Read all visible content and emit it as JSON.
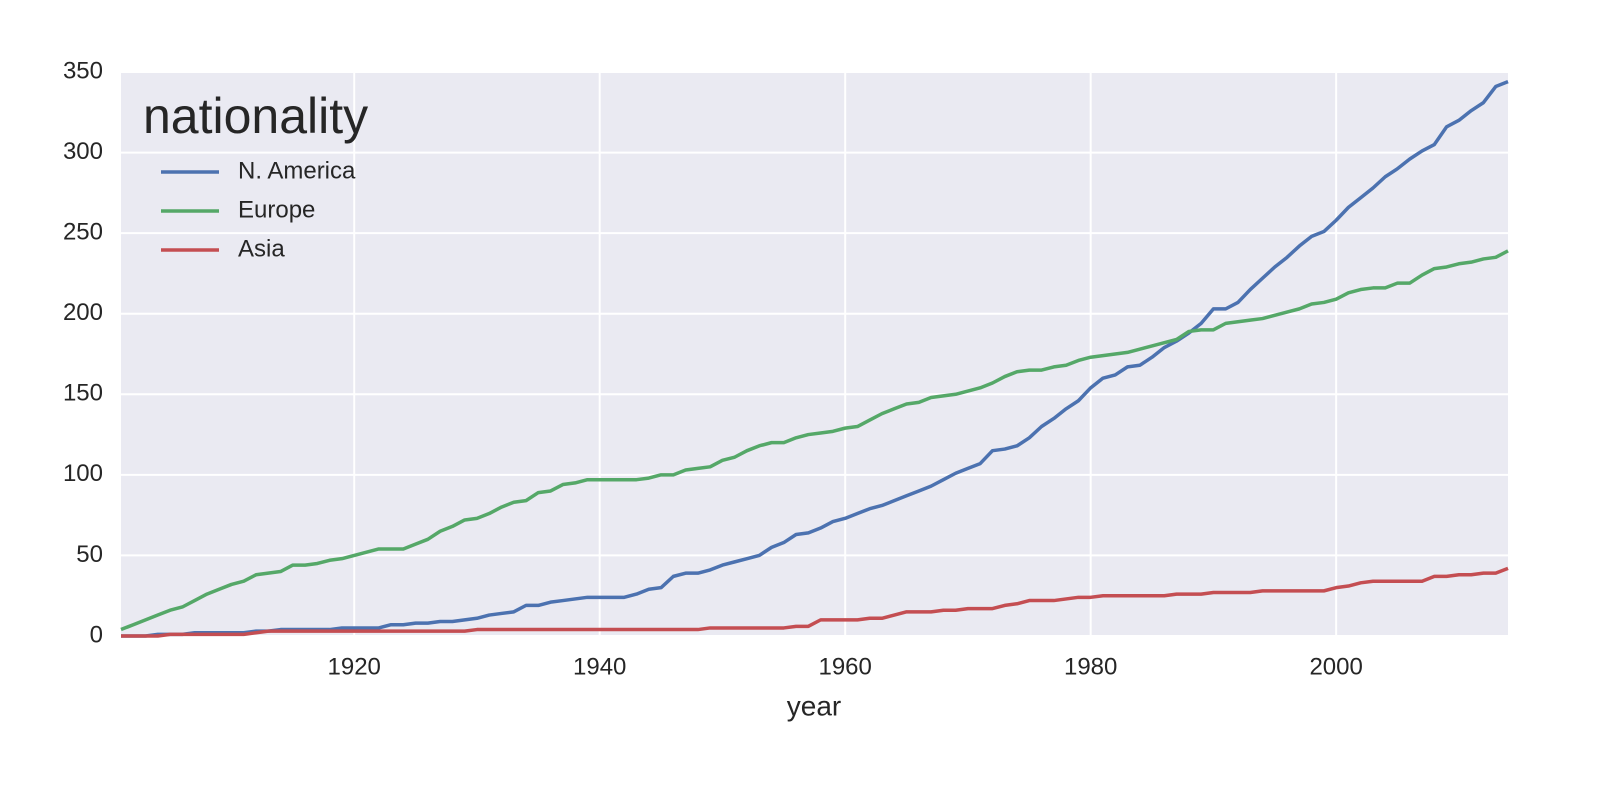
{
  "chart_data": {
    "type": "line",
    "x_label": "year",
    "legend_title": "nationality",
    "legend_position": "upper left",
    "grid": true,
    "xlim": [
      1901,
      2014
    ],
    "ylim": [
      0,
      350
    ],
    "xticks": [
      1920,
      1940,
      1960,
      1980,
      2000
    ],
    "yticks": [
      0,
      50,
      100,
      150,
      200,
      250,
      300,
      350
    ],
    "x": [
      1901,
      1902,
      1903,
      1904,
      1905,
      1906,
      1907,
      1908,
      1909,
      1910,
      1911,
      1912,
      1913,
      1914,
      1915,
      1916,
      1917,
      1918,
      1919,
      1920,
      1921,
      1922,
      1923,
      1924,
      1925,
      1926,
      1927,
      1928,
      1929,
      1930,
      1931,
      1932,
      1933,
      1934,
      1935,
      1936,
      1937,
      1938,
      1939,
      1940,
      1941,
      1942,
      1943,
      1944,
      1945,
      1946,
      1947,
      1948,
      1949,
      1950,
      1951,
      1952,
      1953,
      1954,
      1955,
      1956,
      1957,
      1958,
      1959,
      1960,
      1961,
      1962,
      1963,
      1964,
      1965,
      1966,
      1967,
      1968,
      1969,
      1970,
      1971,
      1972,
      1973,
      1974,
      1975,
      1976,
      1977,
      1978,
      1979,
      1980,
      1981,
      1982,
      1983,
      1984,
      1985,
      1986,
      1987,
      1988,
      1989,
      1990,
      1991,
      1992,
      1993,
      1994,
      1995,
      1996,
      1997,
      1998,
      1999,
      2000,
      2001,
      2002,
      2003,
      2004,
      2005,
      2006,
      2007,
      2008,
      2009,
      2010,
      2011,
      2012,
      2013,
      2014
    ],
    "series": [
      {
        "name": "N. America",
        "color": "#4c72b0",
        "values": [
          0,
          0,
          0,
          1,
          1,
          1,
          2,
          2,
          2,
          2,
          2,
          3,
          3,
          4,
          4,
          4,
          4,
          4,
          5,
          5,
          5,
          5,
          7,
          7,
          8,
          8,
          9,
          9,
          10,
          11,
          13,
          14,
          15,
          19,
          19,
          21,
          22,
          23,
          24,
          24,
          24,
          24,
          26,
          29,
          30,
          37,
          39,
          39,
          41,
          44,
          46,
          48,
          50,
          55,
          58,
          63,
          64,
          67,
          71,
          73,
          76,
          79,
          81,
          84,
          87,
          90,
          93,
          97,
          101,
          104,
          107,
          115,
          116,
          118,
          123,
          130,
          135,
          141,
          146,
          154,
          160,
          162,
          167,
          168,
          173,
          179,
          183,
          188,
          194,
          203,
          203,
          207,
          215,
          222,
          229,
          235,
          242,
          248,
          251,
          258,
          266,
          272,
          278,
          285,
          290,
          296,
          301,
          305,
          316,
          320,
          326,
          331,
          341,
          344
        ]
      },
      {
        "name": "Europe",
        "color": "#55a868",
        "values": [
          4,
          7,
          10,
          13,
          16,
          18,
          22,
          26,
          29,
          32,
          34,
          38,
          39,
          40,
          44,
          44,
          45,
          47,
          48,
          50,
          52,
          54,
          54,
          54,
          57,
          60,
          65,
          68,
          72,
          73,
          76,
          80,
          83,
          84,
          89,
          90,
          94,
          95,
          97,
          97,
          97,
          97,
          97,
          98,
          100,
          100,
          103,
          104,
          105,
          109,
          111,
          115,
          118,
          120,
          120,
          123,
          125,
          126,
          127,
          129,
          130,
          134,
          138,
          141,
          144,
          145,
          148,
          149,
          150,
          152,
          154,
          157,
          161,
          164,
          165,
          165,
          167,
          168,
          171,
          173,
          174,
          175,
          176,
          178,
          180,
          182,
          184,
          189,
          190,
          190,
          194,
          195,
          196,
          197,
          199,
          201,
          203,
          206,
          207,
          209,
          213,
          215,
          216,
          216,
          219,
          219,
          224,
          228,
          229,
          231,
          232,
          234,
          235,
          239
        ]
      },
      {
        "name": "Asia",
        "color": "#c44e52",
        "values": [
          0,
          0,
          0,
          0,
          1,
          1,
          1,
          1,
          1,
          1,
          1,
          2,
          3,
          3,
          3,
          3,
          3,
          3,
          3,
          3,
          3,
          3,
          3,
          3,
          3,
          3,
          3,
          3,
          3,
          4,
          4,
          4,
          4,
          4,
          4,
          4,
          4,
          4,
          4,
          4,
          4,
          4,
          4,
          4,
          4,
          4,
          4,
          4,
          5,
          5,
          5,
          5,
          5,
          5,
          5,
          6,
          6,
          10,
          10,
          10,
          10,
          11,
          11,
          13,
          15,
          15,
          15,
          16,
          16,
          17,
          17,
          17,
          19,
          20,
          22,
          22,
          22,
          23,
          24,
          24,
          25,
          25,
          25,
          25,
          25,
          25,
          26,
          26,
          26,
          27,
          27,
          27,
          27,
          28,
          28,
          28,
          28,
          28,
          28,
          30,
          31,
          33,
          34,
          34,
          34,
          34,
          34,
          37,
          37,
          38,
          38,
          39,
          39,
          42
        ]
      }
    ]
  }
}
